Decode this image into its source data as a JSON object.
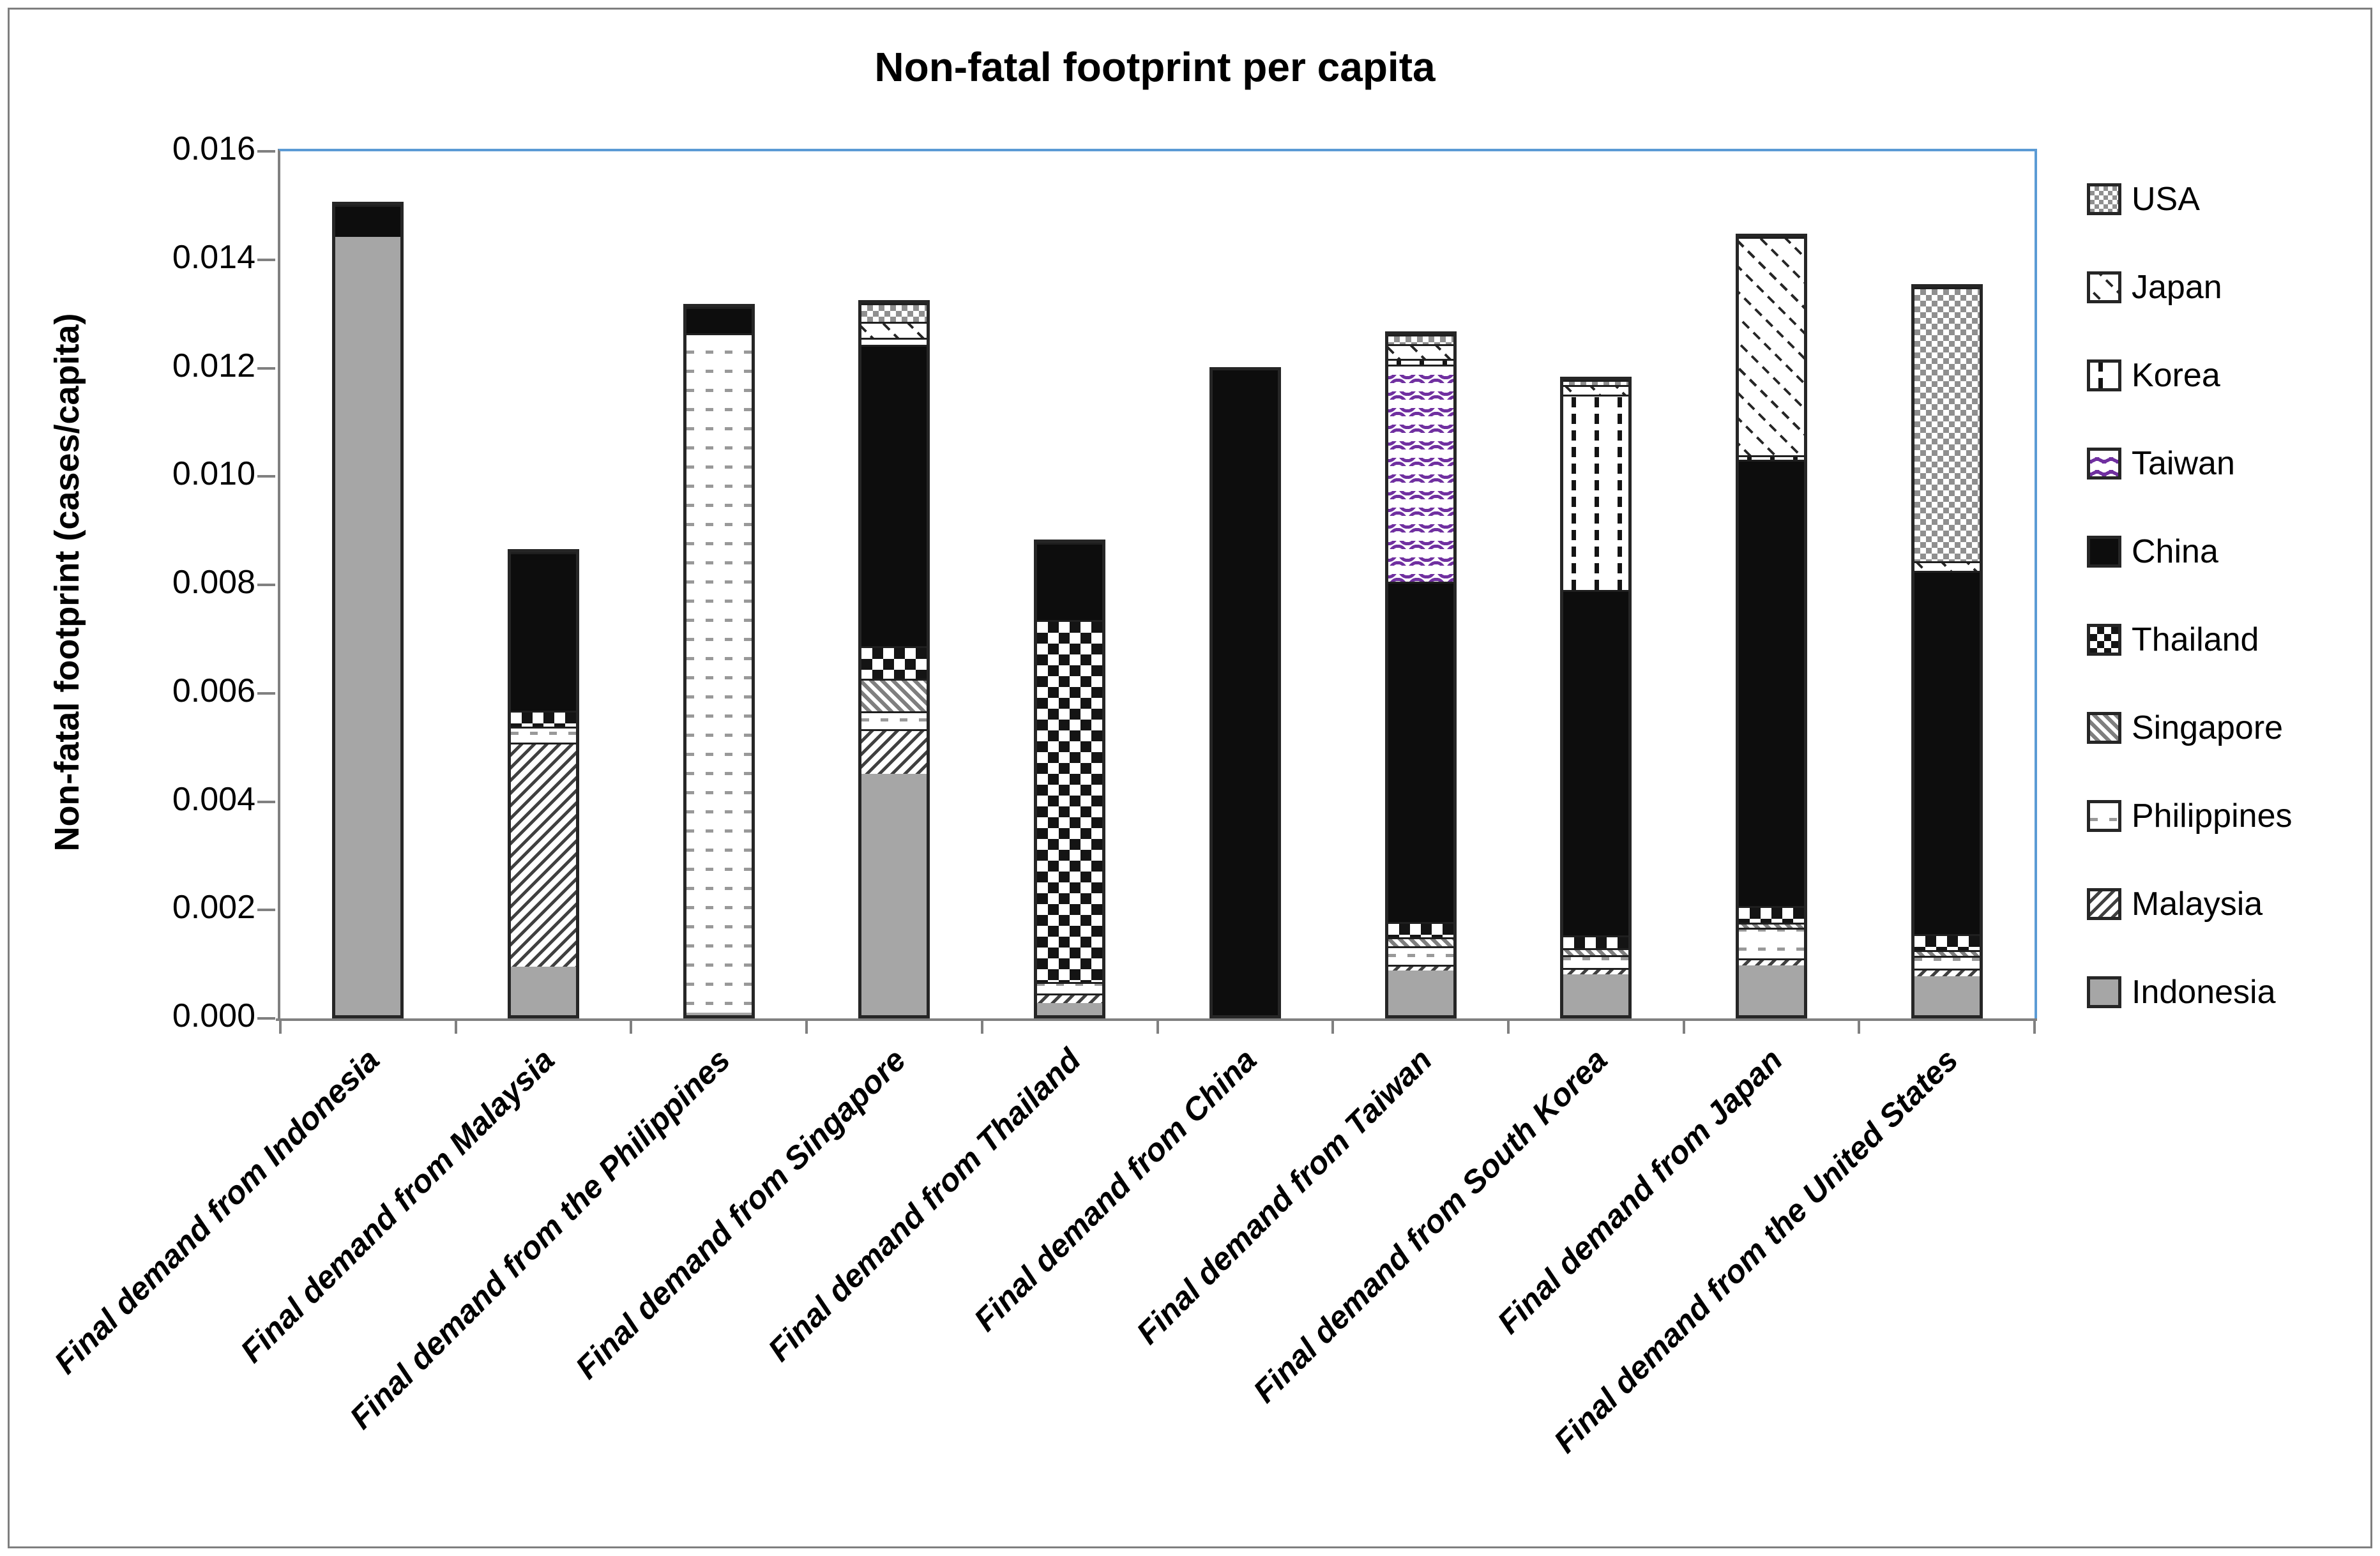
{
  "title": "Non-fatal footprint per capita",
  "y_axis": {
    "label": "Non-fatal footprint (cases/capita)",
    "ticks": [
      "0.000",
      "0.002",
      "0.004",
      "0.006",
      "0.008",
      "0.010",
      "0.012",
      "0.014",
      "0.016"
    ],
    "min": 0,
    "max": 0.016
  },
  "colors": {
    "plot_border": "#5b9bd5",
    "axis_gray": "#808080",
    "indonesia_gray": "#a6a6a6",
    "china_black": "#0d0d0d",
    "taiwan_purple": "#7030a0",
    "bar_border": "#262626"
  },
  "legend": [
    {
      "label": "USA",
      "pattern": "usa"
    },
    {
      "label": "Japan",
      "pattern": "japan"
    },
    {
      "label": "Korea",
      "pattern": "korea"
    },
    {
      "label": "Taiwan",
      "pattern": "taiwan"
    },
    {
      "label": "China",
      "pattern": "china"
    },
    {
      "label": "Thailand",
      "pattern": "thailand"
    },
    {
      "label": "Singapore",
      "pattern": "singapore"
    },
    {
      "label": "Philippines",
      "pattern": "philippines"
    },
    {
      "label": "Malaysia",
      "pattern": "malaysia"
    },
    {
      "label": "Indonesia",
      "pattern": "indonesia"
    }
  ],
  "chart_data": {
    "type": "bar",
    "stacked": true,
    "title": "Non-fatal footprint per capita",
    "xlabel": "",
    "ylabel": "Non-fatal footprint (cases/capita)",
    "ylim": [
      0,
      0.016
    ],
    "grid": false,
    "legend_position": "right",
    "categories": [
      "Final demand from Indonesia",
      "Final demand from Malaysia",
      "Final demand from the Philippines",
      "Final demand from Singapore",
      "Final demand from Thailand",
      "Final demand from China",
      "Final demand from Taiwan",
      "Final demand from South Korea",
      "Final demand from Japan",
      "Final demand from the United States"
    ],
    "series": [
      {
        "name": "Indonesia",
        "pattern": "indonesia",
        "values": [
          0.01436,
          0.0009,
          5e-05,
          0.00445,
          0.00022,
          0.0,
          0.00082,
          0.00076,
          0.00092,
          0.00072
        ]
      },
      {
        "name": "Malaysia",
        "pattern": "malaysia",
        "values": [
          0.0,
          0.0041,
          0.0,
          0.00079,
          0.00015,
          0.0,
          8e-05,
          8e-05,
          9e-05,
          0.0001
        ]
      },
      {
        "name": "Philippines",
        "pattern": "philippines",
        "values": [
          0.0,
          0.00026,
          0.0125,
          0.0003,
          0.00017,
          0.0,
          0.0003,
          0.0002,
          0.00053,
          0.0002
        ]
      },
      {
        "name": "Singapore",
        "pattern": "singapore",
        "values": [
          0.0,
          0.0,
          0.0,
          0.00056,
          0.0,
          0.0,
          0.00013,
          9e-05,
          6e-05,
          8e-05
        ]
      },
      {
        "name": "Thailand",
        "pattern": "thailand",
        "values": [
          0.0,
          0.00026,
          0.0,
          0.00057,
          0.00665,
          0.0,
          0.00025,
          0.0002,
          0.00028,
          0.00025
        ]
      },
      {
        "name": "China",
        "pattern": "china",
        "values": [
          0.00056,
          0.00288,
          0.00045,
          0.00553,
          0.00139,
          0.0119,
          0.00624,
          0.00634,
          0.00819,
          0.00667
        ]
      },
      {
        "name": "Taiwan",
        "pattern": "taiwan",
        "values": [
          0.0,
          0.0,
          0.0,
          9e-05,
          0.0,
          0.0,
          0.00398,
          0.0,
          0.0,
          0.0
        ]
      },
      {
        "name": "Korea",
        "pattern": "korea",
        "values": [
          0.0,
          0.0,
          0.0,
          0.0,
          0.0,
          0.0,
          6e-05,
          0.00357,
          5e-05,
          0.0
        ]
      },
      {
        "name": "Japan",
        "pattern": "japan",
        "values": [
          0.0,
          0.0,
          0.0,
          0.00026,
          0.0,
          0.0,
          0.00024,
          0.00014,
          0.004,
          0.00014
        ]
      },
      {
        "name": "USA",
        "pattern": "usa",
        "values": [
          0.0,
          0.0,
          0.0,
          0.00031,
          0.0,
          0.0,
          0.00014,
          6e-05,
          0.0,
          0.00503
        ]
      }
    ]
  }
}
